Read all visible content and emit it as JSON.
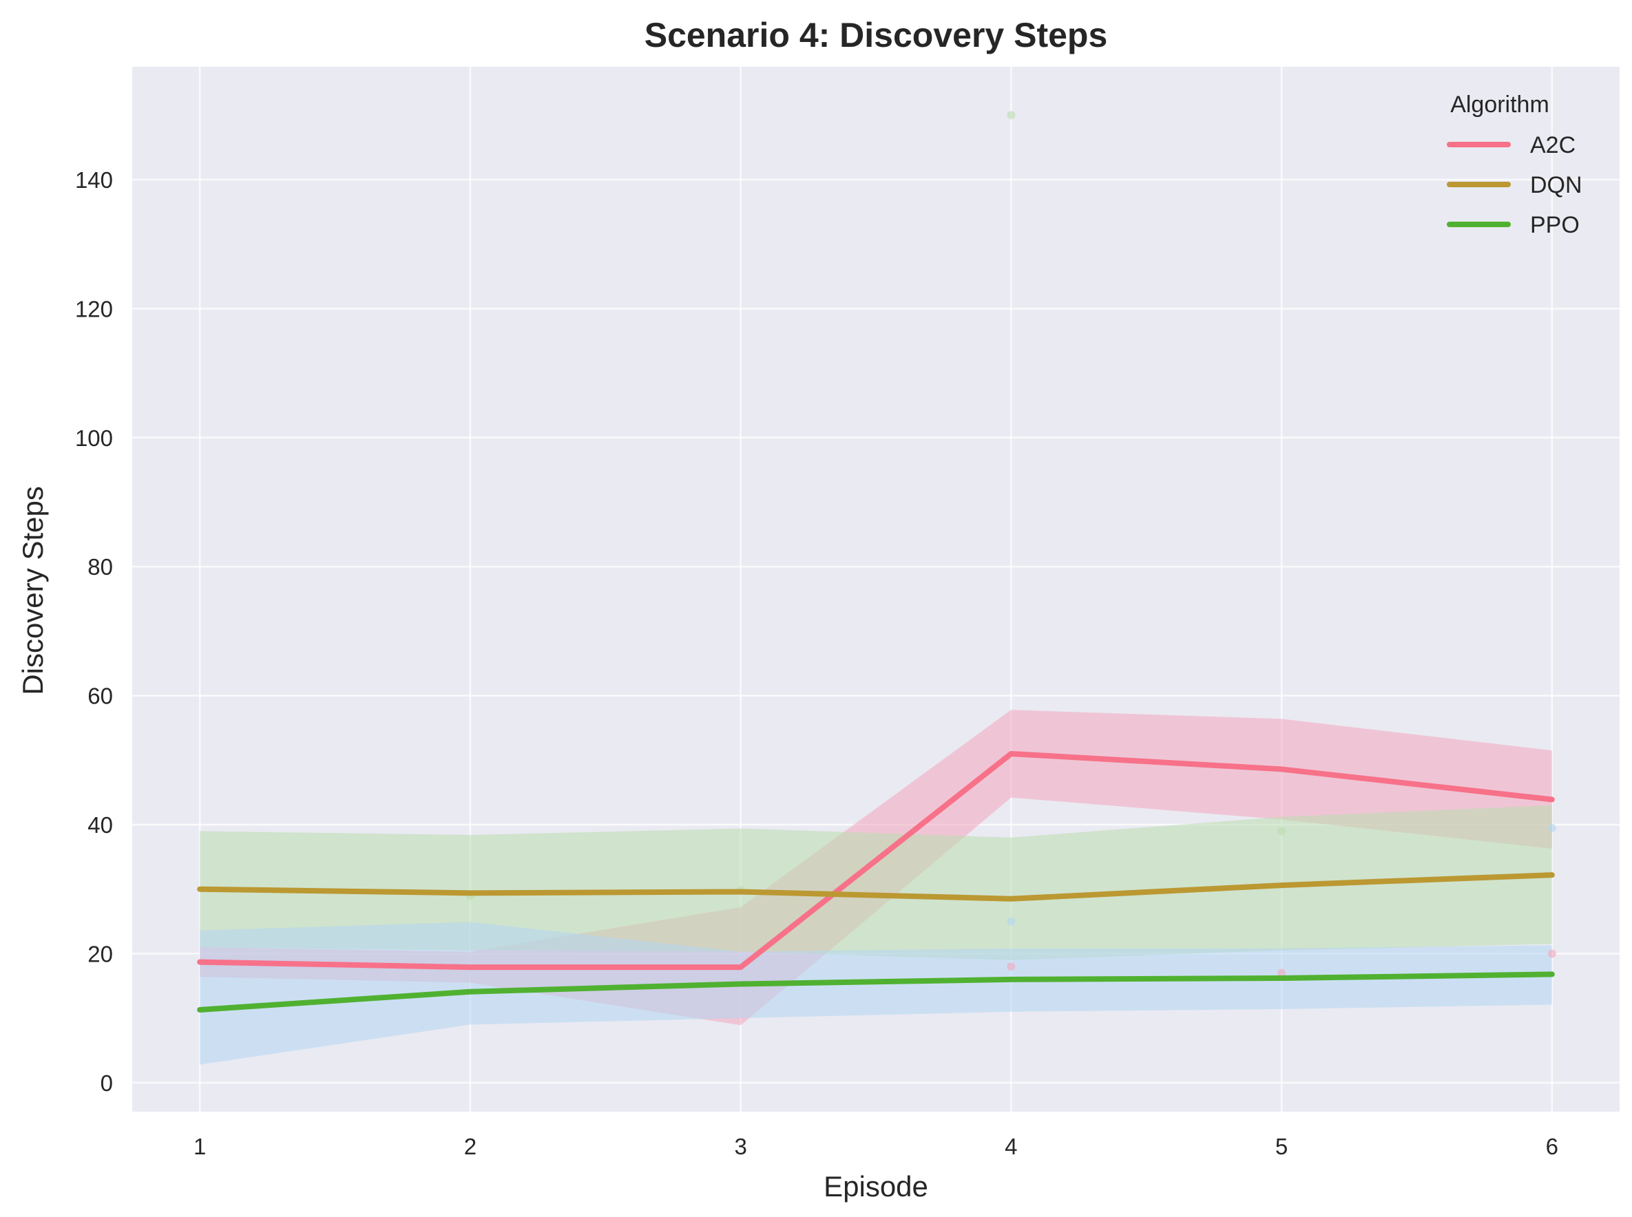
{
  "chart_data": {
    "type": "line",
    "title": "Scenario 4: Discovery Steps",
    "xlabel": "Episode",
    "ylabel": "Discovery Steps",
    "x": [
      1,
      2,
      3,
      4,
      5,
      6
    ],
    "xlim": [
      0.75,
      6.25
    ],
    "ylim": [
      -4.5,
      157.5
    ],
    "xticks": [
      1,
      2,
      3,
      4,
      5,
      6
    ],
    "yticks": [
      0,
      20,
      40,
      60,
      80,
      100,
      120,
      140
    ],
    "grid": true,
    "background": "#eaeaf2",
    "legend": {
      "title": "Algorithm",
      "placement": "top-right"
    },
    "series": [
      {
        "name": "A2C",
        "color": "#f77189",
        "values": [
          18.7,
          17.9,
          17.9,
          51.0,
          48.6,
          43.9
        ],
        "band_lower": [
          16.4,
          15.5,
          8.9,
          44.2,
          40.8,
          36.3
        ],
        "band_upper": [
          21.0,
          20.3,
          27.2,
          57.8,
          56.4,
          51.5
        ],
        "band_color": "#f2a6bd",
        "points": [
          [
            4,
            18.0
          ],
          [
            5,
            17.0
          ],
          [
            6,
            20.0
          ]
        ]
      },
      {
        "name": "DQN",
        "color": "#bb9832",
        "values": [
          30.0,
          29.4,
          29.6,
          28.5,
          30.6,
          32.2
        ],
        "band_lower": [
          21.0,
          20.5,
          20.3,
          19.0,
          20.5,
          21.5
        ],
        "band_upper": [
          39.0,
          38.4,
          39.4,
          38.0,
          41.2,
          43.0
        ],
        "band_color": "#b9dcae",
        "points": [
          [
            2,
            29.0
          ],
          [
            3,
            29.8
          ],
          [
            4,
            150.0
          ],
          [
            5,
            39.0
          ]
        ]
      },
      {
        "name": "PPO",
        "color": "#50b131",
        "values": [
          11.3,
          14.1,
          15.3,
          16.0,
          16.2,
          16.8
        ],
        "band_lower": [
          2.8,
          9.0,
          10.0,
          11.0,
          11.4,
          12.1
        ],
        "band_upper": [
          23.6,
          24.9,
          20.3,
          20.8,
          20.8,
          21.3
        ],
        "band_color": "#b3d6f2",
        "points": [
          [
            4,
            25.0
          ],
          [
            6,
            39.5
          ]
        ]
      }
    ]
  }
}
